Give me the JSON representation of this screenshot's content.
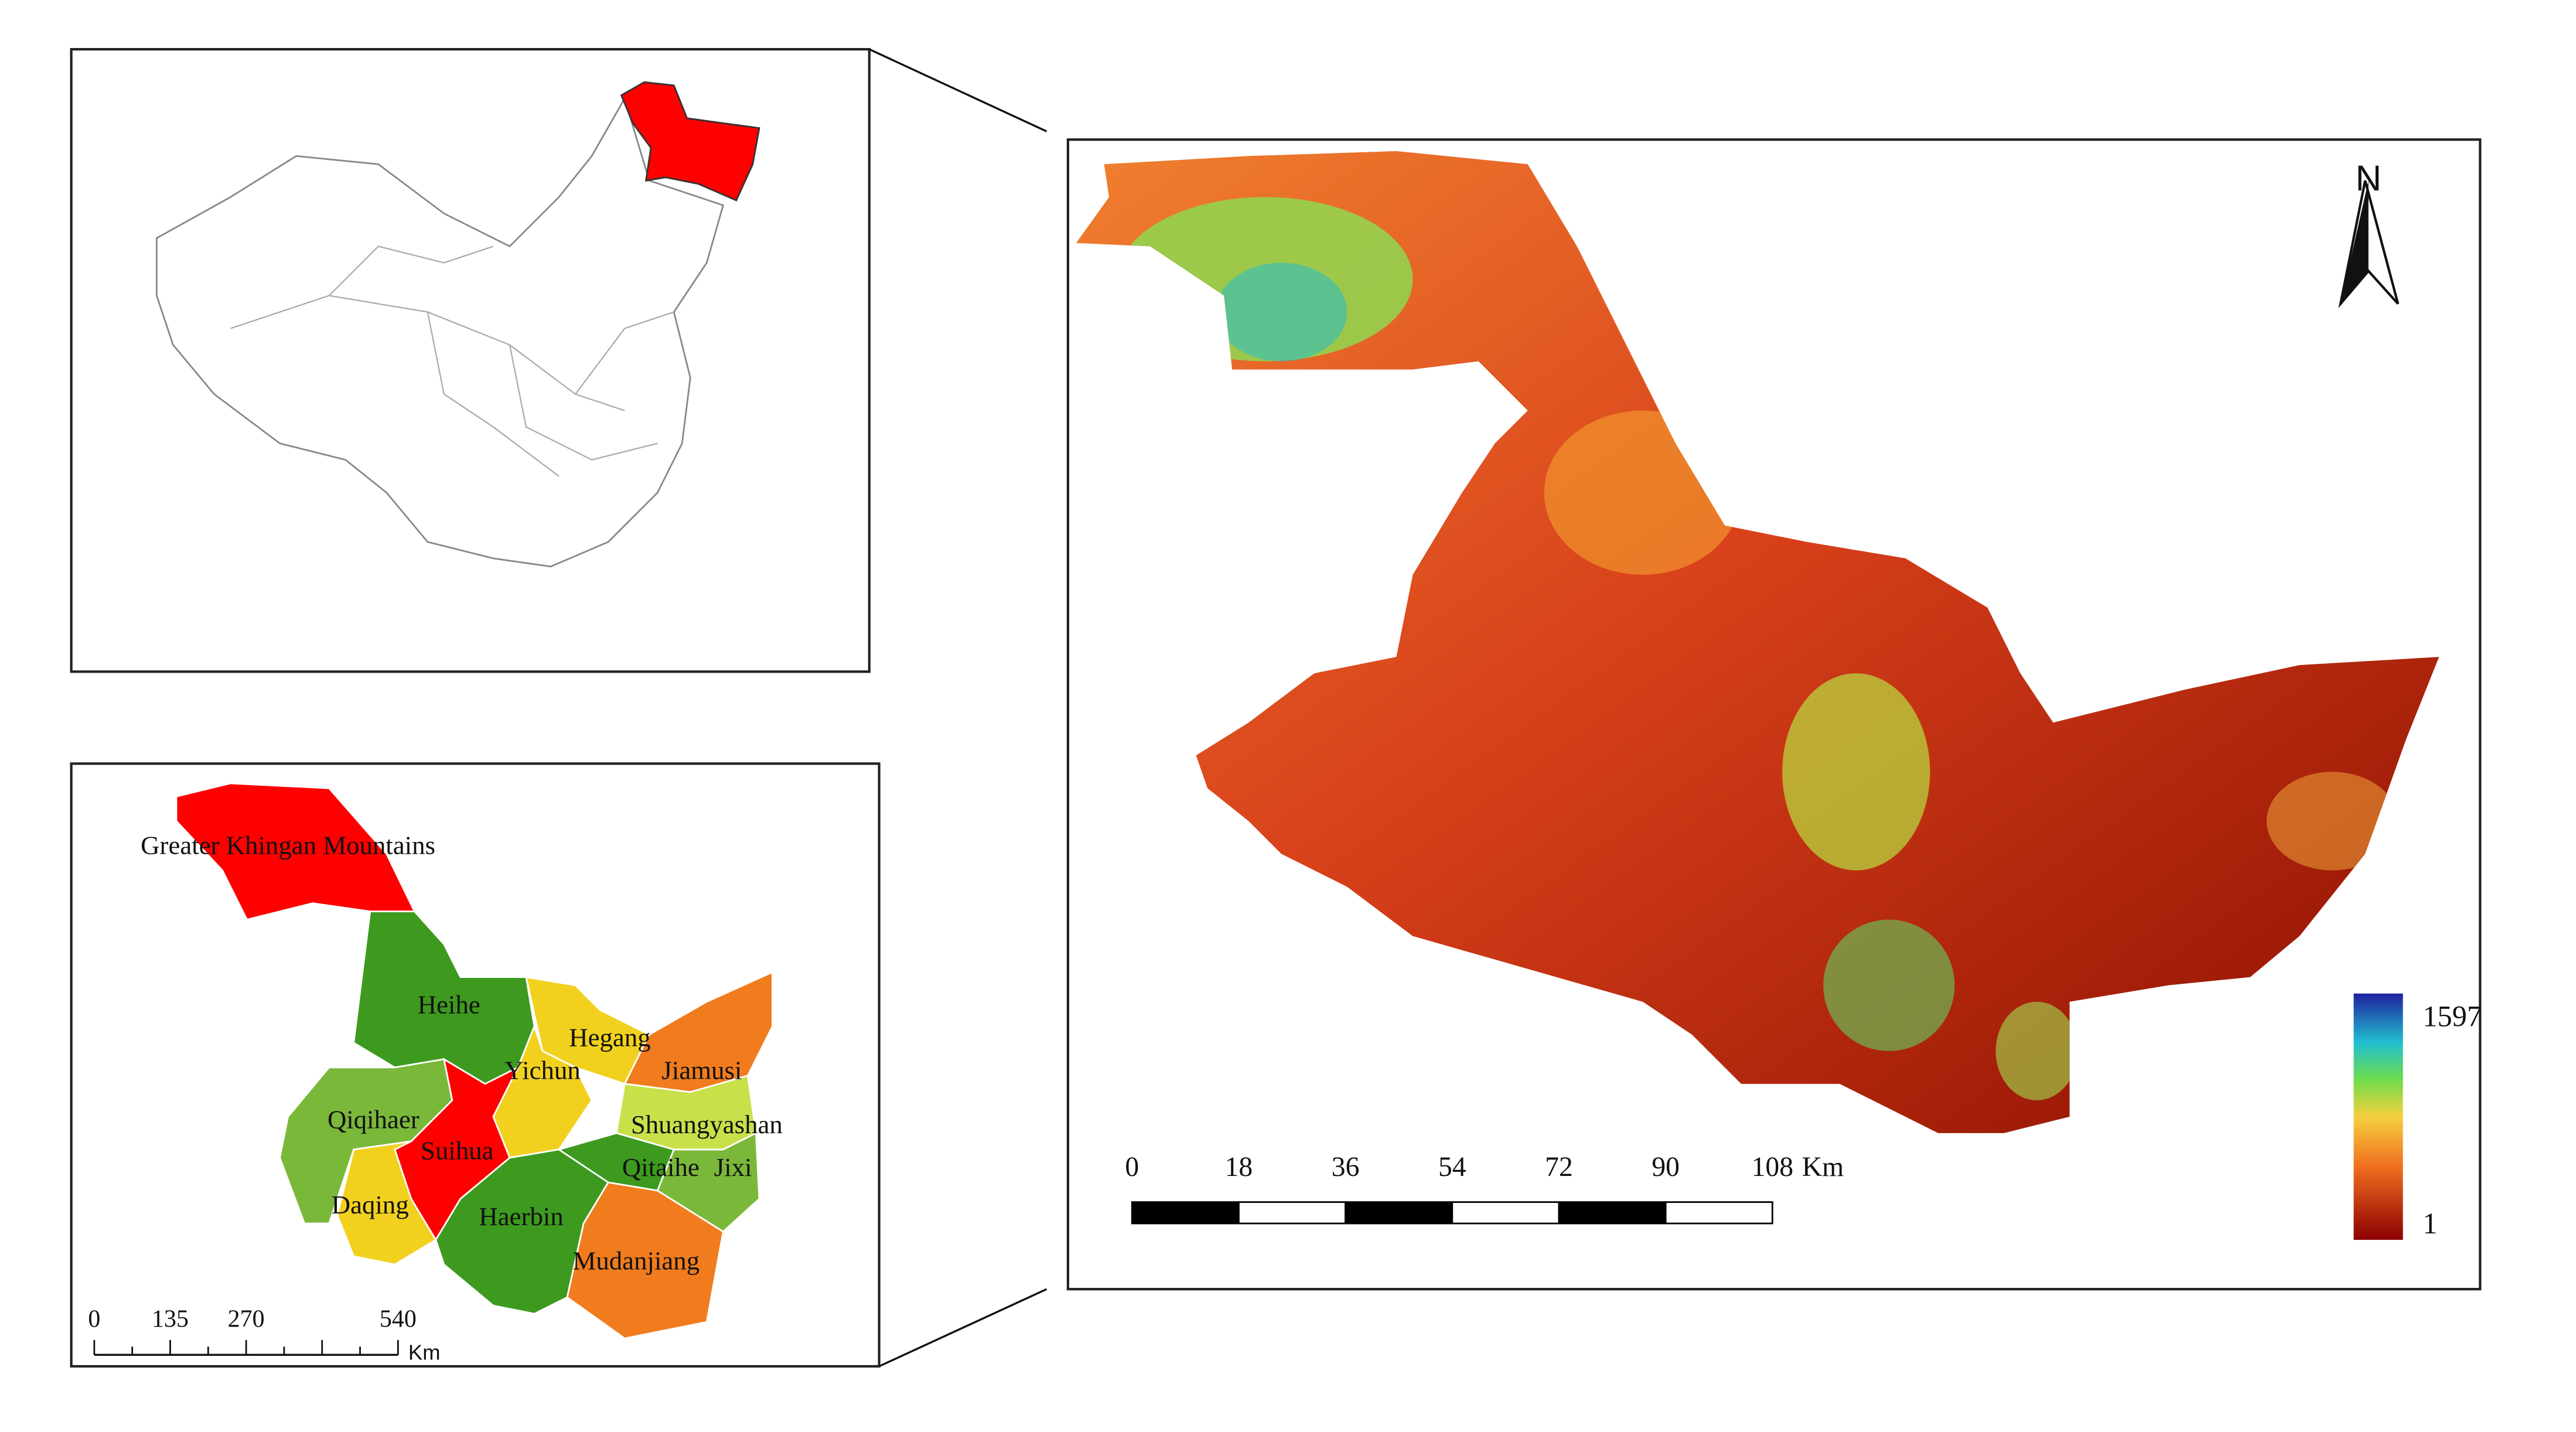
{
  "location_map": {},
  "regional_map": {
    "regions": [
      {
        "name": "Greater Khingan Mountains",
        "color": "#ff0000"
      },
      {
        "name": "Heihe",
        "color": "#3d9a1f"
      },
      {
        "name": "Hegang",
        "color": "#f2d11e"
      },
      {
        "name": "Yichun",
        "color": "#f2d11e"
      },
      {
        "name": "Jiamusi",
        "color": "#f07c1e"
      },
      {
        "name": "Qiqihaer",
        "color": "#7ab83a"
      },
      {
        "name": "Shuangyashan",
        "color": "#c9e04a"
      },
      {
        "name": "Suihua",
        "color": "#ff0000"
      },
      {
        "name": "Qitaihe",
        "color": "#3d9a1f"
      },
      {
        "name": "Jixi",
        "color": "#7ab83a"
      },
      {
        "name": "Daqing",
        "color": "#f2d11e"
      },
      {
        "name": "Haerbin",
        "color": "#3d9a1f"
      },
      {
        "name": "Mudanjiang",
        "color": "#f07c1e"
      }
    ],
    "scale_bar": {
      "ticks": [
        "0",
        "135",
        "270",
        "540"
      ],
      "unit": "Km"
    }
  },
  "elevation_map": {
    "north_label": "N",
    "scale_bar": {
      "ticks": [
        "0",
        "18",
        "36",
        "54",
        "72",
        "90",
        "108"
      ],
      "unit": "Km"
    },
    "legend": {
      "max": "1597",
      "min": "1"
    }
  }
}
